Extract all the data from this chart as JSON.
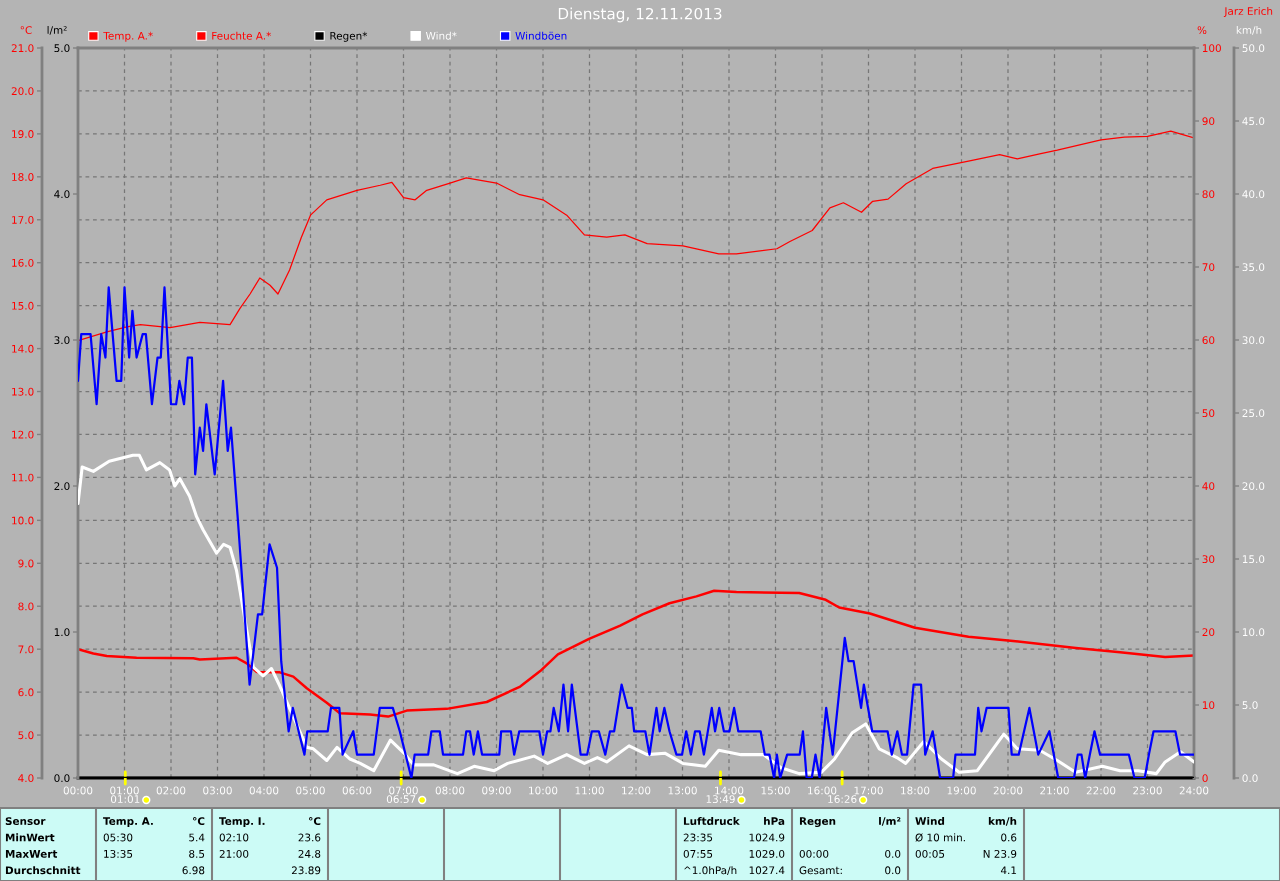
{
  "chart_data": [
    {
      "type": "line",
      "title": "Dienstag, 12.11.2013",
      "ylabel": "°C",
      "y2label": "%",
      "y3label": "l/m²",
      "annotations": [
        "Jarz Erich",
        {
          "text": "01:01",
          "x": 1.017,
          "y": 4.0
        },
        {
          "text": "06:57",
          "x": 6.95,
          "y": 4.0
        },
        {
          "text": "13:49",
          "x": 13.817,
          "y": 4.0
        },
        {
          "text": "16:26",
          "x": 16.433,
          "y": 4.0
        }
      ],
      "xlim": [
        0,
        24
      ],
      "xticks": [
        {
          "value": 0,
          "label": "00:00"
        },
        {
          "value": 1,
          "label": "01:00"
        },
        {
          "value": 2,
          "label": "02:00"
        },
        {
          "value": 3,
          "label": "03:00"
        },
        {
          "value": 4,
          "label": "04:00"
        },
        {
          "value": 5,
          "label": "05:00"
        },
        {
          "value": 6,
          "label": "06:00"
        },
        {
          "value": 7,
          "label": "07:00"
        },
        {
          "value": 8,
          "label": "08:00"
        },
        {
          "value": 9,
          "label": "09:00"
        },
        {
          "value": 10,
          "label": "10:00"
        },
        {
          "value": 11,
          "label": "11:00"
        },
        {
          "value": 12,
          "label": "12:00"
        },
        {
          "value": 13,
          "label": "13:00"
        },
        {
          "value": 14,
          "label": "14:00"
        },
        {
          "value": 15,
          "label": "15:00"
        },
        {
          "value": 16,
          "label": "16:00"
        },
        {
          "value": 17,
          "label": "17:00"
        },
        {
          "value": 18,
          "label": "18:00"
        },
        {
          "value": 19,
          "label": "19:00"
        },
        {
          "value": 20,
          "label": "20:00"
        },
        {
          "value": 21,
          "label": "21:00"
        },
        {
          "value": 22,
          "label": "22:00"
        },
        {
          "value": 23,
          "label": "23:00"
        },
        {
          "value": 24,
          "label": "24:00"
        }
      ],
      "ylim": [
        4,
        21
      ],
      "yticks": [
        {
          "value": 4,
          "label": "4.0"
        },
        {
          "value": 5,
          "label": "5.0"
        },
        {
          "value": 6,
          "label": "6.0"
        },
        {
          "value": 7,
          "label": "7.0"
        },
        {
          "value": 8,
          "label": "8.0"
        },
        {
          "value": 9,
          "label": "9.0"
        },
        {
          "value": 10,
          "label": "10.0"
        },
        {
          "value": 11,
          "label": "11.0"
        },
        {
          "value": 12,
          "label": "12.0"
        },
        {
          "value": 13,
          "label": "13.0"
        },
        {
          "value": 14,
          "label": "14.0"
        },
        {
          "value": 15,
          "label": "15.0"
        },
        {
          "value": 16,
          "label": "16.0"
        },
        {
          "value": 17,
          "label": "17.0"
        },
        {
          "value": 18,
          "label": "18.0"
        },
        {
          "value": 19,
          "label": "19.0"
        },
        {
          "value": 20,
          "label": "20.0"
        },
        {
          "value": 21,
          "label": "21.0"
        }
      ],
      "y2lim": [
        0,
        100
      ],
      "y2ticks": [
        0,
        10,
        20,
        30,
        40,
        50,
        60,
        70,
        80,
        90,
        100
      ],
      "y3lim": [
        0,
        5
      ],
      "y3ticks": [
        {
          "value": 0,
          "label": "0.0"
        },
        {
          "value": 1,
          "label": "1.0"
        },
        {
          "value": 2,
          "label": "2.0"
        },
        {
          "value": 3,
          "label": "3.0"
        },
        {
          "value": 4,
          "label": "4.0"
        },
        {
          "value": 5,
          "label": "5.0"
        }
      ],
      "grid": true,
      "legend": "top",
      "series": [
        {
          "name": "Temp. A.*",
          "color": "#ff0000",
          "x": [
            0,
            0.33,
            0.62,
            1.26,
            2.48,
            2.62,
            3.41,
            3.63,
            3.84,
            4.34,
            4.63,
            4.92,
            5.35,
            5.63,
            6.28,
            6.67,
            7.07,
            7.93,
            8.79,
            9.51,
            9.94,
            10.32,
            10.99,
            11.66,
            12.14,
            12.72,
            13.3,
            13.68,
            14.16,
            15.51,
            16.08,
            16.37,
            17.03,
            18.0,
            19.15,
            20.11,
            21.46,
            22.41,
            23.38,
            24
          ],
          "values": [
            7.0,
            6.9,
            6.84,
            6.8,
            6.79,
            6.76,
            6.8,
            6.67,
            6.47,
            6.46,
            6.36,
            6.09,
            5.75,
            5.51,
            5.48,
            5.43,
            5.57,
            5.61,
            5.77,
            6.13,
            6.49,
            6.88,
            7.24,
            7.55,
            7.81,
            8.07,
            8.23,
            8.36,
            8.33,
            8.31,
            8.15,
            7.97,
            7.83,
            7.5,
            7.29,
            7.19,
            7.03,
            6.93,
            6.82,
            6.85
          ]
        },
        {
          "name": "Feuchte A.*",
          "color": "#ff0000",
          "axis": "y2",
          "x": [
            0,
            0.62,
            1.05,
            1.34,
            1.98,
            2.62,
            3.27,
            3.48,
            3.7,
            3.91,
            4.13,
            4.3,
            4.55,
            4.8,
            5.0,
            5.35,
            6.0,
            6.5,
            6.75,
            7.0,
            7.25,
            7.5,
            8.0,
            8.35,
            9.0,
            9.5,
            10.0,
            10.51,
            10.89,
            11.37,
            11.76,
            12.24,
            13.01,
            13.78,
            14.16,
            15.03,
            15.31,
            15.79,
            16.17,
            16.46,
            16.85,
            17.09,
            17.42,
            17.81,
            18.38,
            19.15,
            19.82,
            20.2,
            20.68,
            21.06,
            22.0,
            22.5,
            23.0,
            23.5,
            24
          ],
          "values": [
            59.9,
            61.1,
            61.8,
            62.1,
            61.7,
            62.4,
            62.1,
            64.3,
            66.3,
            68.5,
            67.5,
            66.3,
            69.6,
            74.0,
            77.1,
            79.2,
            80.5,
            81.2,
            81.6,
            79.5,
            79.2,
            80.5,
            81.5,
            82.2,
            81.5,
            79.9,
            79.2,
            77.1,
            74.4,
            74.1,
            74.4,
            73.2,
            72.9,
            71.8,
            71.8,
            72.5,
            73.5,
            75.0,
            78.1,
            78.8,
            77.5,
            79.0,
            79.3,
            81.4,
            83.5,
            84.5,
            85.4,
            84.8,
            85.5,
            86.0,
            87.4,
            87.8,
            87.9,
            88.6,
            87.7
          ]
        },
        {
          "name": "Regen*",
          "color": "#000000",
          "axis": "y3",
          "x": [
            0,
            24
          ],
          "values": [
            0.0,
            0.0
          ]
        }
      ]
    },
    {
      "type": "line",
      "ylabel": "km/h",
      "xlim": [
        0,
        24
      ],
      "ylim": [
        0,
        50
      ],
      "yticks": [
        {
          "value": 0,
          "label": "0.0"
        },
        {
          "value": 5,
          "label": "5.0"
        },
        {
          "value": 10,
          "label": "10.0"
        },
        {
          "value": 15,
          "label": "15.0"
        },
        {
          "value": 20,
          "label": "20.0"
        },
        {
          "value": 25,
          "label": "25.0"
        },
        {
          "value": 30,
          "label": "30.0"
        },
        {
          "value": 35,
          "label": "35.0"
        },
        {
          "value": 40,
          "label": "40.0"
        },
        {
          "value": 45,
          "label": "45.0"
        },
        {
          "value": 50,
          "label": "50.0"
        }
      ],
      "tick_labels": "y",
      "legend": "top",
      "series": [
        {
          "name": "Wind*",
          "color": "#ffffff",
          "x": [
            0,
            0.09,
            0.33,
            0.67,
            1.18,
            1.32,
            1.47,
            1.76,
            1.97,
            2.08,
            2.19,
            2.4,
            2.55,
            2.69,
            2.98,
            3.13,
            3.27,
            3.41,
            3.63,
            3.77,
            3.98,
            4.16,
            4.34,
            4.63,
            4.92,
            5.06,
            5.35,
            5.57,
            5.85,
            6.07,
            6.36,
            6.72,
            7.01,
            7.22,
            7.65,
            8.16,
            8.52,
            8.95,
            9.24,
            9.81,
            10.1,
            10.51,
            10.89,
            11.17,
            11.37,
            11.85,
            12.24,
            12.62,
            13.01,
            13.49,
            13.78,
            14.26,
            14.74,
            15.12,
            15.51,
            15.99,
            16.27,
            16.65,
            16.94,
            17.23,
            17.61,
            17.8,
            18.19,
            18.57,
            18.95,
            19.34,
            19.91,
            20.2,
            20.68,
            21.06,
            21.45,
            22.03,
            22.41,
            22.8,
            23.19,
            23.38,
            23.71,
            24
          ],
          "values": [
            18.8,
            21.3,
            21.0,
            21.7,
            22.1,
            22.1,
            21.1,
            21.6,
            21.1,
            20.0,
            20.5,
            19.3,
            17.9,
            17.0,
            15.4,
            16.0,
            15.8,
            14.2,
            10.1,
            7.6,
            7.0,
            7.5,
            6.3,
            4.2,
            2.1,
            2.0,
            1.2,
            2.1,
            1.3,
            1.0,
            0.5,
            2.6,
            1.7,
            0.9,
            0.9,
            0.3,
            0.8,
            0.5,
            1.0,
            1.5,
            1.0,
            1.6,
            1.0,
            1.4,
            1.1,
            2.2,
            1.6,
            1.7,
            1.0,
            0.8,
            1.9,
            1.6,
            1.6,
            0.7,
            0.3,
            0.4,
            1.3,
            3.1,
            3.7,
            2.0,
            1.4,
            1.0,
            2.5,
            1.3,
            0.4,
            0.5,
            3.0,
            2.0,
            1.9,
            1.2,
            0.4,
            0.8,
            0.5,
            0.5,
            0.3,
            1.1,
            1.8,
            1.1
          ]
        },
        {
          "name": "Windböen",
          "color": "#0000ff",
          "x": [
            0,
            0.07,
            0.27,
            0.4,
            0.5,
            0.59,
            0.66,
            0.83,
            0.93,
            1.0,
            1.1,
            1.17,
            1.26,
            1.39,
            1.46,
            1.59,
            1.71,
            1.78,
            1.86,
            2.0,
            2.11,
            2.18,
            2.28,
            2.36,
            2.45,
            2.52,
            2.62,
            2.69,
            2.76,
            2.94,
            3.12,
            3.22,
            3.29,
            3.44,
            3.69,
            3.87,
            3.96,
            4.12,
            4.28,
            4.37,
            4.53,
            4.62,
            4.87,
            4.93,
            5.37,
            5.44,
            5.62,
            5.69,
            5.92,
            6.0,
            6.36,
            6.49,
            6.77,
            6.92,
            7.17,
            7.24,
            7.53,
            7.6,
            7.78,
            7.85,
            8.28,
            8.35,
            8.43,
            8.51,
            8.6,
            8.69,
            9.06,
            9.1,
            9.31,
            9.38,
            9.49,
            9.92,
            10.0,
            10.09,
            10.16,
            10.23,
            10.34,
            10.44,
            10.54,
            10.62,
            10.81,
            10.95,
            11.05,
            11.2,
            11.34,
            11.44,
            11.53,
            11.69,
            11.82,
            11.91,
            11.96,
            12.2,
            12.29,
            12.44,
            12.51,
            12.61,
            12.72,
            12.87,
            12.99,
            13.08,
            13.18,
            13.27,
            13.37,
            13.46,
            13.63,
            13.7,
            13.79,
            13.89,
            14.01,
            14.11,
            14.2,
            14.68,
            14.77,
            14.87,
            14.97,
            15.03,
            15.1,
            15.25,
            15.52,
            15.59,
            15.67,
            15.78,
            15.86,
            15.95,
            16.09,
            16.23,
            16.49,
            16.57,
            16.68,
            16.84,
            16.9,
            17.08,
            17.41,
            17.5,
            17.62,
            17.72,
            17.83,
            17.97,
            18.13,
            18.22,
            18.38,
            18.54,
            18.82,
            18.87,
            19.29,
            19.36,
            19.43,
            19.54,
            20.01,
            20.08,
            20.23,
            20.46,
            20.65,
            20.89,
            21.08,
            21.42,
            21.5,
            21.58,
            21.66,
            21.86,
            21.98,
            22.6,
            22.72,
            22.94,
            23.03,
            23.13,
            23.6,
            23.7,
            24
          ],
          "values": [
            27.2,
            30.4,
            30.4,
            25.6,
            30.4,
            28.8,
            33.6,
            27.2,
            27.2,
            33.6,
            28.8,
            32.0,
            28.8,
            30.4,
            30.4,
            25.6,
            28.8,
            28.8,
            33.6,
            25.6,
            25.6,
            27.2,
            25.6,
            28.8,
            28.8,
            20.8,
            24.0,
            22.4,
            25.6,
            20.8,
            27.2,
            22.4,
            24.0,
            17.6,
            6.4,
            11.2,
            11.2,
            16.0,
            14.4,
            8.0,
            3.2,
            4.8,
            1.6,
            3.2,
            3.2,
            4.8,
            4.8,
            1.6,
            3.2,
            1.6,
            1.6,
            4.8,
            4.8,
            3.2,
            0.0,
            1.6,
            1.6,
            3.2,
            3.2,
            1.6,
            1.6,
            3.2,
            3.2,
            1.6,
            3.2,
            1.6,
            1.6,
            3.2,
            3.2,
            1.6,
            3.2,
            3.2,
            1.6,
            3.2,
            3.2,
            4.8,
            3.2,
            6.4,
            3.2,
            6.4,
            1.6,
            1.6,
            3.2,
            3.2,
            1.6,
            3.2,
            3.2,
            6.4,
            4.8,
            4.8,
            3.2,
            3.2,
            1.6,
            4.8,
            3.2,
            4.8,
            3.2,
            1.6,
            1.6,
            3.2,
            1.6,
            3.2,
            3.2,
            1.6,
            4.8,
            3.2,
            4.8,
            3.2,
            3.2,
            4.8,
            3.2,
            3.2,
            1.6,
            1.6,
            0.0,
            1.6,
            0.0,
            1.6,
            1.6,
            3.2,
            0.0,
            0.0,
            1.6,
            0.0,
            4.8,
            1.6,
            9.6,
            8.0,
            8.0,
            4.8,
            6.4,
            3.2,
            3.2,
            1.6,
            3.2,
            1.6,
            1.6,
            6.4,
            6.4,
            1.6,
            3.2,
            0.0,
            0.0,
            1.6,
            1.6,
            4.8,
            3.2,
            4.8,
            4.8,
            1.6,
            1.6,
            4.8,
            1.6,
            3.2,
            0.0,
            0.0,
            1.6,
            1.6,
            0.0,
            3.2,
            1.6,
            1.6,
            0.0,
            0.0,
            1.6,
            3.2,
            3.2,
            1.6,
            1.6
          ]
        }
      ]
    },
    {
      "type": "other",
      "cell_labels": [
        [
          "Sensor",
          "Temp. A.",
          "°C",
          "Temp. I.",
          "°C",
          null,
          null,
          null,
          null,
          null,
          null,
          "Luftdruck",
          "hPa",
          "Regen",
          "l/m²",
          "Wind",
          "km/h"
        ],
        [
          "MinWert",
          "05:30",
          "5.4",
          "02:10",
          "23.6",
          null,
          null,
          null,
          null,
          null,
          null,
          "23:35",
          "1024.9",
          null,
          null,
          "Ø 10 min.",
          "0.6"
        ],
        [
          "MaxWert",
          "13:35",
          "8.5",
          "21:00",
          "24.8",
          null,
          null,
          null,
          null,
          null,
          null,
          "07:55",
          "1029.0",
          "00:00",
          "0.0",
          "00:05",
          "N 23.9"
        ],
        [
          "Durchschnitt",
          null,
          "6.98",
          null,
          "23.89",
          null,
          null,
          null,
          null,
          null,
          null,
          "^1.0hPa/h",
          "1027.4",
          "Gesamt:",
          "0.0",
          null,
          "4.1"
        ]
      ]
    }
  ]
}
